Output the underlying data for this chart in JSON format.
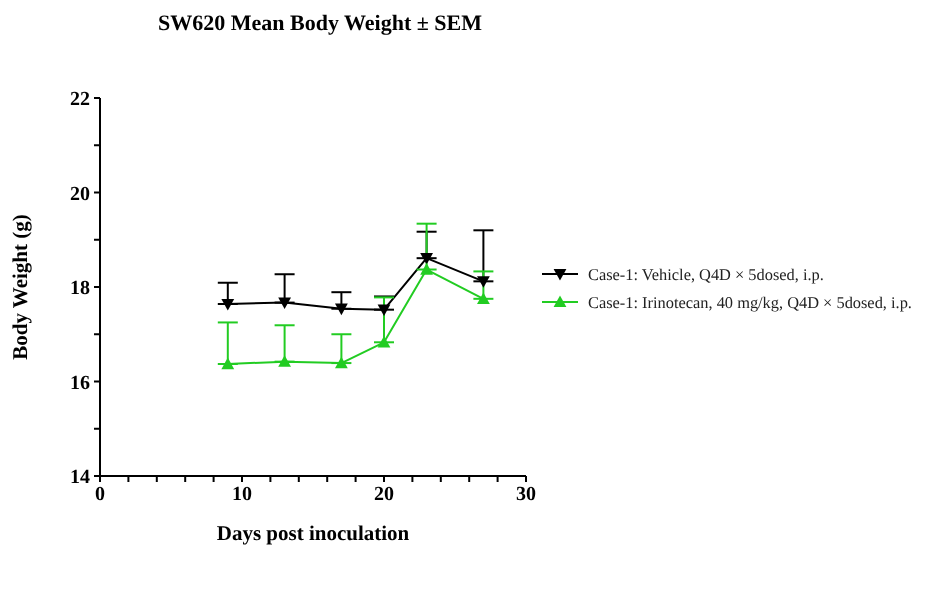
{
  "chart_data": {
    "type": "line",
    "title": "SW620 Mean Body Weight ± SEM",
    "xlabel": "Days post inoculation",
    "ylabel": "Body Weight (g)",
    "x": [
      9,
      13,
      17,
      20,
      23,
      27
    ],
    "series": [
      {
        "name": "Case-1: Vehicle, Q4D × 5dosed, i.p.",
        "color": "#000000",
        "marker": "triangle-down",
        "values": [
          17.64,
          17.67,
          17.54,
          17.52,
          18.61,
          18.12
        ],
        "errors": [
          [
            17.64,
            18.09
          ],
          [
            17.67,
            18.27
          ],
          [
            17.54,
            17.89
          ],
          [
            17.52,
            17.8
          ],
          [
            18.61,
            19.17
          ],
          [
            18.12,
            19.2
          ]
        ]
      },
      {
        "name": "Case-1: Irinotecan, 40 mg/kg, Q4D × 5dosed, i.p.",
        "color": "#22cc22",
        "marker": "triangle",
        "values": [
          16.37,
          16.42,
          16.39,
          16.83,
          18.37,
          17.75
        ],
        "errors": [
          [
            16.37,
            17.25
          ],
          [
            16.42,
            17.19
          ],
          [
            16.39,
            17.0
          ],
          [
            16.83,
            17.78
          ],
          [
            18.37,
            19.34
          ],
          [
            17.75,
            18.33
          ]
        ]
      }
    ],
    "xlim": [
      0,
      30
    ],
    "xticks": [
      0,
      {
        "value": 2,
        "label": null
      },
      {
        "value": 4,
        "label": null
      },
      {
        "value": 6,
        "label": null
      },
      {
        "value": 8,
        "label": null
      },
      10,
      {
        "value": 12,
        "label": null
      },
      {
        "value": 14,
        "label": null
      },
      {
        "value": 16,
        "label": null
      },
      {
        "value": 18,
        "label": null
      },
      20,
      {
        "value": 22,
        "label": null
      },
      {
        "value": 24,
        "label": null
      },
      {
        "value": 26,
        "label": null
      },
      {
        "value": 28,
        "label": null
      },
      30
    ],
    "ylim": [
      14,
      22
    ],
    "yticks": [
      14,
      {
        "value": 15,
        "label": null
      },
      16,
      {
        "value": 17,
        "label": null
      },
      18,
      {
        "value": 19,
        "label": null
      },
      20,
      {
        "value": 21,
        "label": null
      },
      22
    ],
    "grid": false,
    "legend": "right",
    "line_style": "solid"
  }
}
